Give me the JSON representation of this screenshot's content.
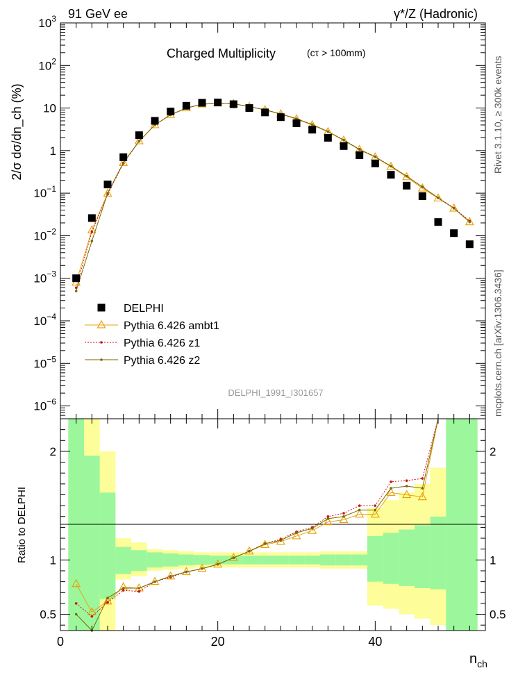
{
  "header": {
    "left": "91 GeV ee",
    "right": "γ*/Z (Hadronic)"
  },
  "side_labels": {
    "rivet": "Rivet 3.1.10, ≥ 300k events",
    "mcplots": "mcplots.cern.ch [arXiv:1306.3436]"
  },
  "chart_data": [
    {
      "type": "scatter",
      "panel": "main",
      "title": "Charged Multiplicity",
      "title_suffix": "(cτ > 100mm)",
      "ylabel": "2/σ dσ/dn_ch (%)",
      "yscale": "log",
      "xlim": [
        0,
        54
      ],
      "ylim": [
        5e-07,
        1000
      ],
      "y_tick_labels": [
        "10^-6",
        "10^-5",
        "10^-4",
        "10^-3",
        "10^-2",
        "10^-1",
        "1",
        "10",
        "10^2",
        "10^3"
      ],
      "watermark": "DELPHI_1991_I301657",
      "legend_position": "lower-left",
      "x": [
        2,
        4,
        6,
        8,
        10,
        12,
        14,
        16,
        18,
        20,
        22,
        24,
        26,
        28,
        30,
        32,
        34,
        36,
        38,
        40,
        42,
        44,
        46,
        48,
        50,
        52
      ],
      "series": [
        {
          "name": "DELPHI",
          "color": "#000000",
          "marker": "square",
          "values": [
            0.001,
            0.026,
            0.16,
            0.7,
            2.3,
            5.0,
            8.3,
            11.3,
            13.3,
            13.5,
            12.3,
            10.0,
            7.9,
            6.1,
            4.4,
            3.1,
            2.0,
            1.28,
            0.78,
            0.5,
            0.27,
            0.15,
            0.085,
            0.021,
            0.0115,
            0.0063
          ]
        },
        {
          "name": "Pythia 6.426 ambt1",
          "color": "#e7a30d",
          "marker": "triangle",
          "values": [
            0.0008,
            0.0135,
            0.098,
            0.52,
            1.68,
            4.0,
            7.0,
            10.0,
            12.3,
            13.0,
            12.6,
            10.8,
            9.0,
            7.2,
            5.5,
            4.0,
            2.75,
            1.74,
            1.05,
            0.7,
            0.42,
            0.24,
            0.13,
            0.076,
            0.044,
            0.021
          ]
        },
        {
          "name": "Pythia 6.426 z1",
          "color": "#d10f0f",
          "marker": "dot",
          "dashed": true,
          "values": [
            0.0006,
            0.0125,
            0.094,
            0.5,
            1.65,
            4.0,
            6.9,
            9.9,
            12.3,
            13.0,
            12.6,
            10.8,
            9.1,
            7.3,
            5.6,
            4.1,
            2.8,
            1.78,
            1.08,
            0.72,
            0.43,
            0.25,
            0.14,
            0.078,
            0.045,
            0.022
          ]
        },
        {
          "name": "Pythia 6.426 z2",
          "color": "#7a6a00",
          "marker": "dot",
          "values": [
            0.0005,
            0.0075,
            0.1,
            0.52,
            1.66,
            4.0,
            7.0,
            10.0,
            12.3,
            13.0,
            12.6,
            10.8,
            9.1,
            7.3,
            5.6,
            4.1,
            2.8,
            1.76,
            1.06,
            0.71,
            0.43,
            0.25,
            0.14,
            0.077,
            0.044,
            0.021
          ]
        }
      ]
    },
    {
      "type": "line",
      "panel": "ratio",
      "ylabel": "Ratio to DELPHI",
      "xlabel": "n_ch",
      "xlim": [
        0,
        54
      ],
      "ylim": [
        0.35,
        2.3
      ],
      "x_ticks": [
        0,
        20,
        40
      ],
      "y_ticks": [
        0.5,
        1,
        2
      ],
      "x": [
        2,
        4,
        6,
        8,
        10,
        12,
        14,
        16,
        18,
        20,
        22,
        24,
        26,
        28,
        30,
        32,
        34,
        36,
        38,
        40,
        42,
        44,
        46,
        48,
        50,
        52
      ],
      "uncertainty_bands": {
        "inner_color": "#9cf79c",
        "outer_color": "#fdfd99",
        "edges": [
          1,
          3,
          5,
          7,
          9,
          11,
          13,
          15,
          17,
          19,
          21,
          23,
          25,
          27,
          29,
          31,
          33,
          35,
          37,
          39,
          41,
          43,
          45,
          47,
          49,
          51,
          53
        ],
        "inner_low": [
          0.35,
          0.35,
          0.64,
          0.87,
          0.9,
          0.93,
          0.94,
          0.95,
          0.955,
          0.96,
          0.96,
          0.96,
          0.96,
          0.96,
          0.96,
          0.96,
          0.95,
          0.95,
          0.95,
          0.8,
          0.78,
          0.76,
          0.74,
          0.73,
          0.35,
          0.35
        ],
        "inner_high": [
          2.3,
          1.96,
          1.62,
          1.12,
          1.09,
          1.07,
          1.06,
          1.05,
          1.045,
          1.04,
          1.04,
          1.04,
          1.04,
          1.04,
          1.04,
          1.04,
          1.05,
          1.05,
          1.05,
          1.22,
          1.25,
          1.28,
          1.32,
          1.4,
          2.3,
          2.3
        ],
        "outer_low": [
          0.35,
          0.35,
          0.35,
          0.82,
          0.85,
          0.9,
          0.91,
          0.92,
          0.93,
          0.93,
          0.93,
          0.93,
          0.93,
          0.93,
          0.93,
          0.93,
          0.92,
          0.92,
          0.92,
          0.58,
          0.55,
          0.5,
          0.46,
          0.4,
          0.35,
          0.35
        ],
        "outer_high": [
          2.3,
          2.3,
          2.0,
          1.2,
          1.16,
          1.1,
          1.09,
          1.08,
          1.07,
          1.07,
          1.07,
          1.07,
          1.07,
          1.07,
          1.07,
          1.07,
          1.08,
          1.08,
          1.08,
          1.48,
          1.55,
          1.62,
          1.7,
          1.85,
          2.3,
          2.3
        ]
      },
      "series": [
        {
          "name": "Pythia 6.426 ambt1",
          "color": "#e7a30d",
          "marker": "triangle",
          "values": [
            0.78,
            0.52,
            0.62,
            0.75,
            0.74,
            0.8,
            0.85,
            0.89,
            0.92,
            0.96,
            1.02,
            1.08,
            1.14,
            1.17,
            1.22,
            1.27,
            1.35,
            1.37,
            1.42,
            1.42,
            1.62,
            1.6,
            1.58,
            2.3,
            2.3,
            2.3
          ]
        },
        {
          "name": "Pythia 6.426 z1",
          "color": "#d10f0f",
          "marker": "dot",
          "dashed": true,
          "values": [
            0.6,
            0.48,
            0.61,
            0.72,
            0.71,
            0.8,
            0.84,
            0.89,
            0.92,
            0.96,
            1.02,
            1.08,
            1.15,
            1.19,
            1.26,
            1.3,
            1.4,
            1.43,
            1.5,
            1.5,
            1.72,
            1.73,
            1.75,
            2.3,
            2.3,
            2.3
          ]
        },
        {
          "name": "Pythia 6.426 z2",
          "color": "#7a6a00",
          "marker": "dot",
          "values": [
            0.5,
            0.3,
            0.65,
            0.74,
            0.74,
            0.8,
            0.85,
            0.89,
            0.92,
            0.96,
            1.02,
            1.08,
            1.15,
            1.18,
            1.25,
            1.29,
            1.38,
            1.4,
            1.46,
            1.46,
            1.66,
            1.68,
            1.66,
            2.3,
            2.3,
            2.3
          ]
        }
      ]
    }
  ]
}
